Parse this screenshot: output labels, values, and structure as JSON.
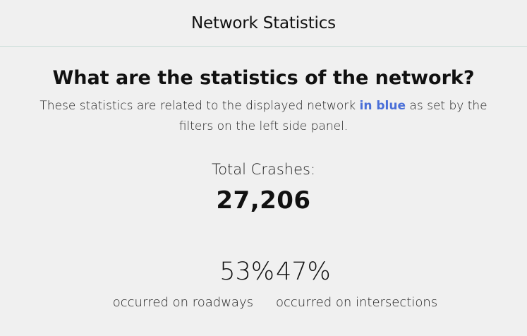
{
  "header": {
    "title": "Network Statistics"
  },
  "main": {
    "question": "What are the statistics of the network?",
    "description_before": "These statistics are related to the displayed network ",
    "description_highlight": "in blue",
    "description_after": " as set by the filters on the left side panel.",
    "highlight_color": "#4a6fd8",
    "total_label": "Total Crashes:",
    "total_value": "27,206",
    "splits": [
      {
        "percent": "53%",
        "label": "occurred on roadways"
      },
      {
        "percent": "47%",
        "label": "occurred on intersections"
      }
    ]
  }
}
